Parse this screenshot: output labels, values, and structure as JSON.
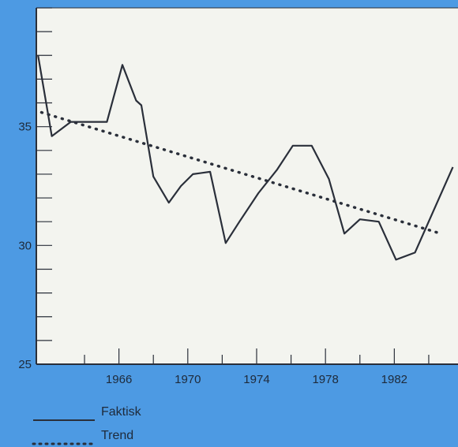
{
  "colors": {
    "background": "#4d9ae3",
    "plot_background": "#f3f4ef",
    "ink": "#2a2f3a"
  },
  "chart_data": {
    "type": "line",
    "title": "",
    "xlabel": "",
    "ylabel": "",
    "xlim": [
      1961.2,
      1985.7
    ],
    "ylim": [
      25,
      40
    ],
    "x_ticks": [
      1966,
      1970,
      1974,
      1978,
      1982
    ],
    "y_ticks": [
      25,
      30,
      35
    ],
    "grid": false,
    "legend_position": "bottom-left",
    "series": [
      {
        "name": "Faktisk",
        "style": "solid",
        "points": [
          [
            1961.3,
            38
          ],
          [
            1962.1,
            34.6
          ],
          [
            1963.2,
            35.2
          ],
          [
            1964.3,
            35.2
          ],
          [
            1965.3,
            35.2
          ],
          [
            1966.2,
            37.6
          ],
          [
            1967.0,
            36.1
          ],
          [
            1967.3,
            35.9
          ],
          [
            1968.0,
            32.9
          ],
          [
            1968.9,
            31.8
          ],
          [
            1969.6,
            32.5
          ],
          [
            1970.3,
            33.0
          ],
          [
            1971.3,
            33.1
          ],
          [
            1972.2,
            30.1
          ],
          [
            1973.0,
            31.0
          ],
          [
            1974.1,
            32.2
          ],
          [
            1975.2,
            33.2
          ],
          [
            1976.1,
            34.2
          ],
          [
            1977.2,
            34.2
          ],
          [
            1978.2,
            32.8
          ],
          [
            1979.1,
            30.5
          ],
          [
            1980.0,
            31.1
          ],
          [
            1981.1,
            31.0
          ],
          [
            1982.1,
            29.4
          ],
          [
            1983.2,
            29.7
          ],
          [
            1985.4,
            33.3
          ]
        ]
      },
      {
        "name": "Trend",
        "style": "dotted",
        "points": [
          [
            1961.5,
            35.6
          ],
          [
            1984.7,
            30.5
          ]
        ]
      }
    ]
  }
}
